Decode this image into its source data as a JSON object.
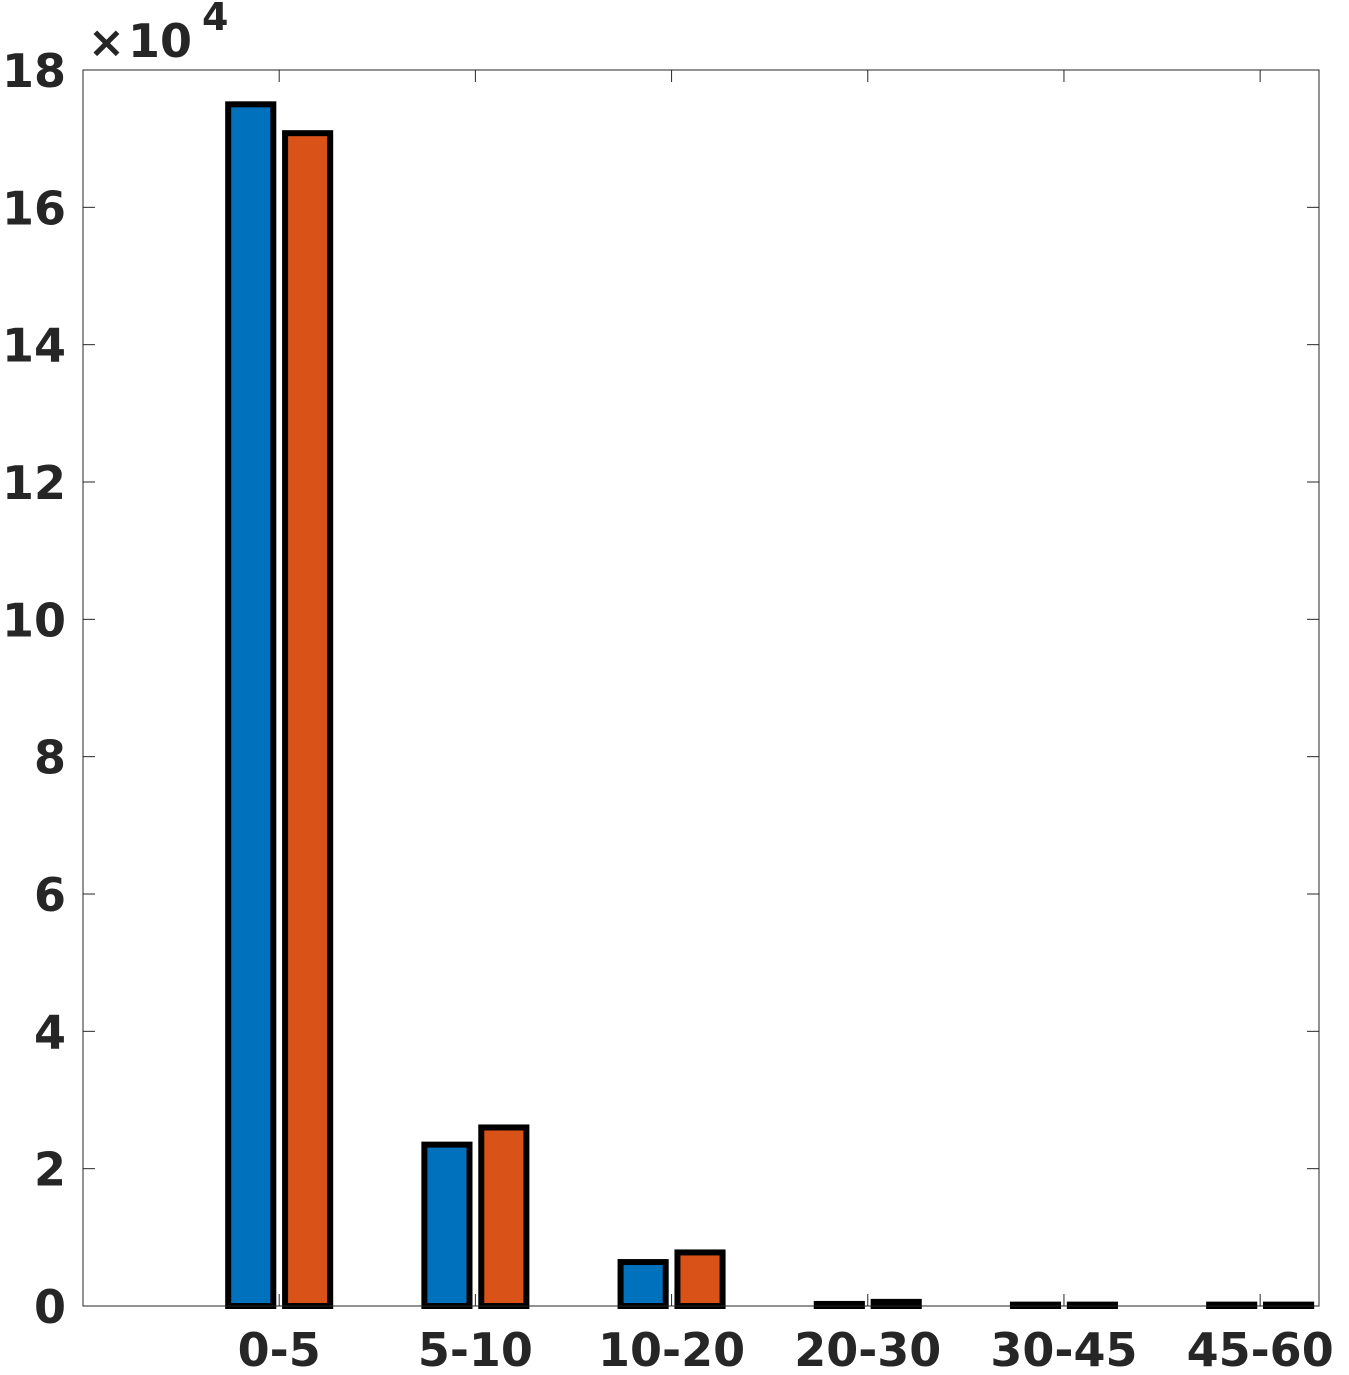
{
  "chart_data": {
    "type": "bar",
    "categories": [
      "0-5",
      "5-10",
      "10-20",
      "20-30",
      "30-45",
      "45-60"
    ],
    "series": [
      {
        "color": "#0072BD",
        "values": [
          175000,
          23500,
          6400,
          300,
          200,
          200
        ]
      },
      {
        "color": "#D95319",
        "values": [
          170800,
          26000,
          7800,
          600,
          200,
          200
        ]
      }
    ],
    "ylim": [
      0,
      180000
    ],
    "yticks": [
      0,
      20000,
      40000,
      60000,
      80000,
      100000,
      120000,
      140000,
      160000,
      180000
    ],
    "ytick_labels": [
      "0",
      "2",
      "4",
      "6",
      "8",
      "10",
      "12",
      "14",
      "16",
      "18"
    ],
    "y_exponent_label": {
      "times": "×",
      "base": "10",
      "power": "4"
    },
    "title": "",
    "xlabel": "",
    "ylabel": "",
    "grid": false,
    "legend": "none"
  }
}
